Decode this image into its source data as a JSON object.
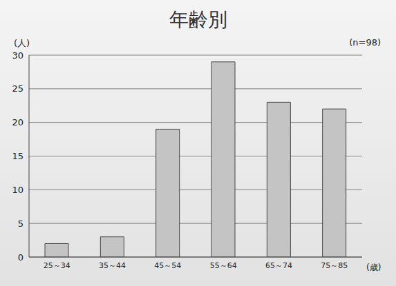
{
  "chart_data": {
    "type": "bar",
    "title": "年齢別",
    "y_label": "(人)",
    "x_label": "(歳)",
    "annotation": "(n=98)",
    "categories": [
      "25～34",
      "35～44",
      "45～54",
      "55～64",
      "65～74",
      "75～85"
    ],
    "values": [
      2,
      3,
      19,
      29,
      23,
      22
    ],
    "color": "#c4c4c4",
    "ylim": [
      0,
      30
    ],
    "yticks": [
      0,
      5,
      10,
      15,
      20,
      25,
      30
    ],
    "grid": true
  }
}
